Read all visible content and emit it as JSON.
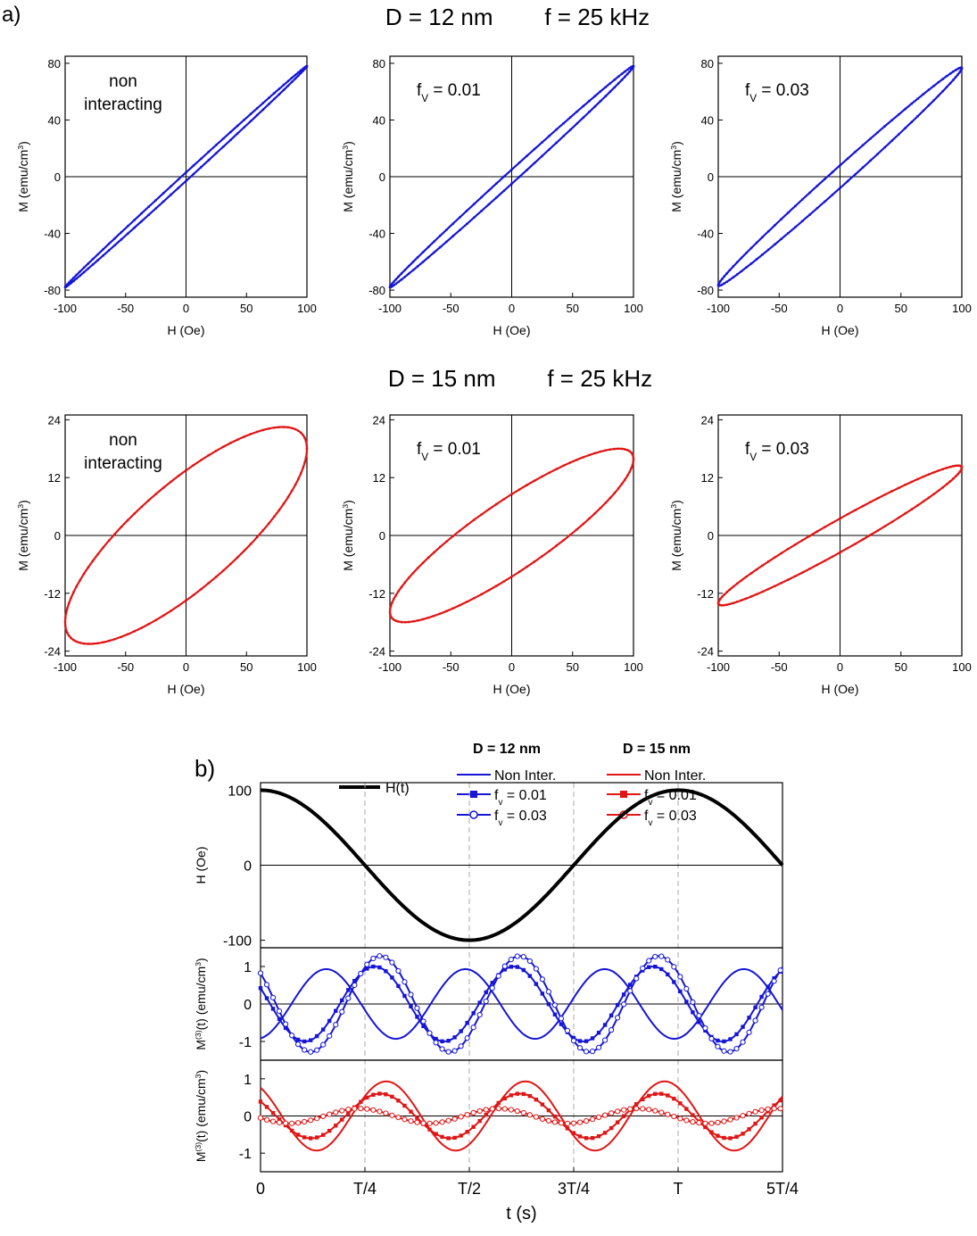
{
  "figure": {
    "panel_a_label": "a)",
    "panel_b_label": "b)",
    "row1_title": "D = 12 nm        f = 25 kHz",
    "row2_title": "D = 15 nm        f = 25 kHz",
    "colors": {
      "blue": "#1515d6",
      "red": "#e01515",
      "black": "#000000"
    }
  },
  "chart_data": [
    {
      "type": "line",
      "panel": "a",
      "row": 1,
      "col": 1,
      "annotation": "non\ninteracting",
      "xlabel": "H (Oe)",
      "ylabel": "M (emu/cm3)",
      "xlim": [
        -100,
        100
      ],
      "ylim": [
        -85,
        85
      ],
      "xticks": [
        -100,
        -50,
        0,
        50,
        100
      ],
      "yticks": [
        -80,
        -40,
        0,
        40,
        80
      ],
      "color": "#1515d6",
      "loop": {
        "Hmax": 100,
        "Mmax": 78,
        "M_at_H0": 3,
        "Hc": 3.5
      }
    },
    {
      "type": "line",
      "panel": "a",
      "row": 1,
      "col": 2,
      "annotation": "f_V = 0.01",
      "xlabel": "H (Oe)",
      "ylabel": "M (emu/cm3)",
      "xlim": [
        -100,
        100
      ],
      "ylim": [
        -85,
        85
      ],
      "xticks": [
        -100,
        -50,
        0,
        50,
        100
      ],
      "yticks": [
        -80,
        -40,
        0,
        40,
        80
      ],
      "color": "#1515d6",
      "loop": {
        "Hmax": 100,
        "Mmax": 78,
        "M_at_H0": 5,
        "Hc": 6
      }
    },
    {
      "type": "line",
      "panel": "a",
      "row": 1,
      "col": 3,
      "annotation": "f_V = 0.03",
      "xlabel": "H (Oe)",
      "ylabel": "M (emu/cm3)",
      "xlim": [
        -100,
        100
      ],
      "ylim": [
        -85,
        85
      ],
      "xticks": [
        -100,
        -50,
        0,
        50,
        100
      ],
      "yticks": [
        -80,
        -40,
        0,
        40,
        80
      ],
      "color": "#1515d6",
      "loop": {
        "Hmax": 100,
        "Mmax": 77,
        "M_at_H0": 8,
        "Hc": 10
      }
    },
    {
      "type": "line",
      "panel": "a",
      "row": 2,
      "col": 1,
      "annotation": "non\ninteracting",
      "xlabel": "H (Oe)",
      "ylabel": "M (emu/cm3)",
      "xlim": [
        -100,
        100
      ],
      "ylim": [
        -25,
        25
      ],
      "xticks": [
        -100,
        -50,
        0,
        50,
        100
      ],
      "yticks": [
        -24,
        -12,
        0,
        12,
        24
      ],
      "color": "#e01515",
      "loop": {
        "Hmax": 100,
        "Mpeak": 22.5,
        "H_at_Mpeak": 80,
        "M_at_Hmax": 17,
        "M_at_H0": 13,
        "Hc": 65
      }
    },
    {
      "type": "line",
      "panel": "a",
      "row": 2,
      "col": 2,
      "annotation": "f_V = 0.01",
      "xlabel": "H (Oe)",
      "ylabel": "M (emu/cm3)",
      "xlim": [
        -100,
        100
      ],
      "ylim": [
        -25,
        25
      ],
      "xticks": [
        -100,
        -50,
        0,
        50,
        100
      ],
      "yticks": [
        -24,
        -12,
        0,
        12,
        24
      ],
      "color": "#e01515",
      "loop": {
        "Hmax": 100,
        "Mpeak": 18,
        "H_at_Mpeak": 88,
        "M_at_Hmax": 15.5,
        "M_at_H0": 8.5,
        "Hc": 47
      }
    },
    {
      "type": "line",
      "panel": "a",
      "row": 2,
      "col": 3,
      "annotation": "f_V = 0.03",
      "xlabel": "H (Oe)",
      "ylabel": "M (emu/cm3)",
      "xlim": [
        -100,
        100
      ],
      "ylim": [
        -25,
        25
      ],
      "xticks": [
        -100,
        -50,
        0,
        50,
        100
      ],
      "yticks": [
        -24,
        -12,
        0,
        12,
        24
      ],
      "color": "#e01515",
      "loop": {
        "Hmax": 100,
        "Mpeak": 14.5,
        "H_at_Mpeak": 97,
        "M_at_Hmax": 14,
        "M_at_H0": 3,
        "Hc": 20
      }
    },
    {
      "type": "line",
      "panel": "b",
      "legend": {
        "group_12": "D = 12 nm",
        "group_15": "D = 15 nm",
        "h_label": "H(t)",
        "non_inter": "Non Inter.",
        "fv001": "f_v = 0.01",
        "fv003": "f_v = 0.03"
      },
      "xlabel": "t (s)",
      "xlim": [
        0,
        1.25
      ],
      "xticks": [
        0,
        0.25,
        0.5,
        0.75,
        1.0,
        1.25
      ],
      "xticklabels": [
        "0",
        "T/4",
        "T/2",
        "3T/4",
        "T",
        "5T/4"
      ],
      "subplots": [
        {
          "ylabel": "H (Oe)",
          "ylim": [
            -110,
            110
          ],
          "yticks": [
            -100,
            0,
            100
          ],
          "series": [
            {
              "name": "H(t)",
              "color": "#000000",
              "amplitude": 100,
              "harmonic": 1,
              "phase_deg": 0
            }
          ]
        },
        {
          "ylabel": "M(3)(t) (emu/cm3)",
          "ylim": [
            -1.5,
            1.5
          ],
          "yticks": [
            -1,
            0,
            1
          ],
          "series": [
            {
              "name": "Non Inter.",
              "color": "#1515d6",
              "amplitude": 0.93,
              "harmonic": 3,
              "phase_deg": 190,
              "marker": "none"
            },
            {
              "name": "f_v = 0.01",
              "color": "#1515d6",
              "amplitude": 1.0,
              "harmonic": 3,
              "phase_deg": 65,
              "marker": "square"
            },
            {
              "name": "f_v = 0.03",
              "color": "#1515d6",
              "amplitude": 1.28,
              "harmonic": 3,
              "phase_deg": 50,
              "marker": "circle"
            }
          ]
        },
        {
          "ylabel": "M(3)(t) (emu/cm3)",
          "ylim": [
            -1.5,
            1.5
          ],
          "yticks": [
            -1,
            0,
            1
          ],
          "series": [
            {
              "name": "Non Inter.",
              "color": "#e01515",
              "amplitude": 0.93,
              "harmonic": 3,
              "phase_deg": 35,
              "marker": "none"
            },
            {
              "name": "f_v = 0.01",
              "color": "#e01515",
              "amplitude": 0.6,
              "harmonic": 3,
              "phase_deg": 50,
              "marker": "square"
            },
            {
              "name": "f_v = 0.03",
              "color": "#e01515",
              "amplitude": 0.2,
              "harmonic": 3,
              "phase_deg": 105,
              "marker": "circle"
            }
          ]
        }
      ]
    }
  ]
}
